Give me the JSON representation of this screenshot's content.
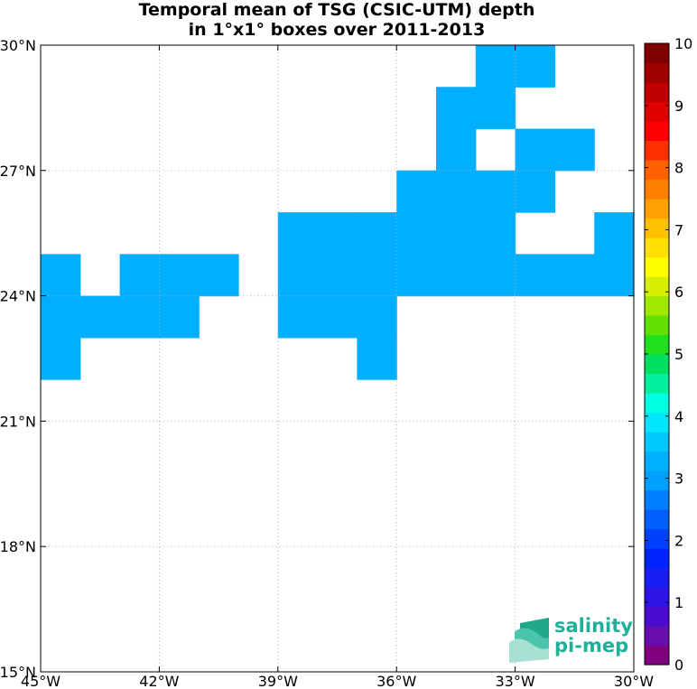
{
  "title_line1": "Temporal mean of TSG (CSIC-UTM) depth",
  "title_line2": "in 1°x1° boxes over 2011-2013",
  "logo": {
    "line1": "salinity",
    "line2": "pi-mep"
  },
  "chart_data": {
    "type": "heatmap",
    "title": "Temporal mean of TSG (CSIC-UTM) depth in 1°x1° boxes over 2011-2013",
    "xlim": [
      -45,
      -30
    ],
    "ylim": [
      15,
      30
    ],
    "x_ticks": [
      {
        "v": -45,
        "label": "45°W"
      },
      {
        "v": -42,
        "label": "42°W"
      },
      {
        "v": -39,
        "label": "39°W"
      },
      {
        "v": -36,
        "label": "36°W"
      },
      {
        "v": -33,
        "label": "33°W"
      },
      {
        "v": -30,
        "label": "30°W"
      }
    ],
    "y_ticks": [
      {
        "v": 15,
        "label": "15°N"
      },
      {
        "v": 18,
        "label": "18°N"
      },
      {
        "v": 21,
        "label": "21°N"
      },
      {
        "v": 24,
        "label": "24°N"
      },
      {
        "v": 27,
        "label": "27°N"
      },
      {
        "v": 30,
        "label": "30°N"
      }
    ],
    "grid": true,
    "cell_value": 3,
    "cell_color": "#00b0ff",
    "cells": [
      [
        -34,
        29
      ],
      [
        -33,
        29
      ],
      [
        -35,
        28
      ],
      [
        -34,
        28
      ],
      [
        -35,
        27
      ],
      [
        -33,
        27
      ],
      [
        -32,
        27
      ],
      [
        -36,
        26
      ],
      [
        -35,
        26
      ],
      [
        -34,
        26
      ],
      [
        -33,
        26
      ],
      [
        -39,
        25
      ],
      [
        -38,
        25
      ],
      [
        -37,
        25
      ],
      [
        -36,
        25
      ],
      [
        -35,
        25
      ],
      [
        -34,
        25
      ],
      [
        -31,
        25
      ],
      [
        -45,
        24
      ],
      [
        -43,
        24
      ],
      [
        -42,
        24
      ],
      [
        -41,
        24
      ],
      [
        -39,
        24
      ],
      [
        -38,
        24
      ],
      [
        -37,
        24
      ],
      [
        -36,
        24
      ],
      [
        -35,
        24
      ],
      [
        -34,
        24
      ],
      [
        -33,
        24
      ],
      [
        -32,
        24
      ],
      [
        -31,
        24
      ],
      [
        -45,
        23
      ],
      [
        -44,
        23
      ],
      [
        -43,
        23
      ],
      [
        -42,
        23
      ],
      [
        -39,
        23
      ],
      [
        -38,
        23
      ],
      [
        -37,
        23
      ],
      [
        -45,
        22
      ],
      [
        -37,
        22
      ]
    ],
    "colorbar": {
      "min": 0,
      "max": 10,
      "tick_labels": [
        "0",
        "1",
        "2",
        "3",
        "4",
        "5",
        "6",
        "7",
        "8",
        "9",
        "10"
      ],
      "colors": [
        "#800080",
        "#6a0dad",
        "#4b0bd0",
        "#2d13e6",
        "#1a1ef5",
        "#0022ff",
        "#0040ff",
        "#0060ff",
        "#0080ff",
        "#00a0ff",
        "#00b0ff",
        "#00c8ff",
        "#00e6ff",
        "#00ffe0",
        "#00f0a0",
        "#00e060",
        "#20e020",
        "#60e000",
        "#a0e800",
        "#d8ef00",
        "#ffff00",
        "#ffe000",
        "#ffc000",
        "#ffa000",
        "#ff8000",
        "#ff6000",
        "#ff3000",
        "#ff0000",
        "#e00000",
        "#c00000",
        "#a00000",
        "#800000"
      ]
    }
  }
}
